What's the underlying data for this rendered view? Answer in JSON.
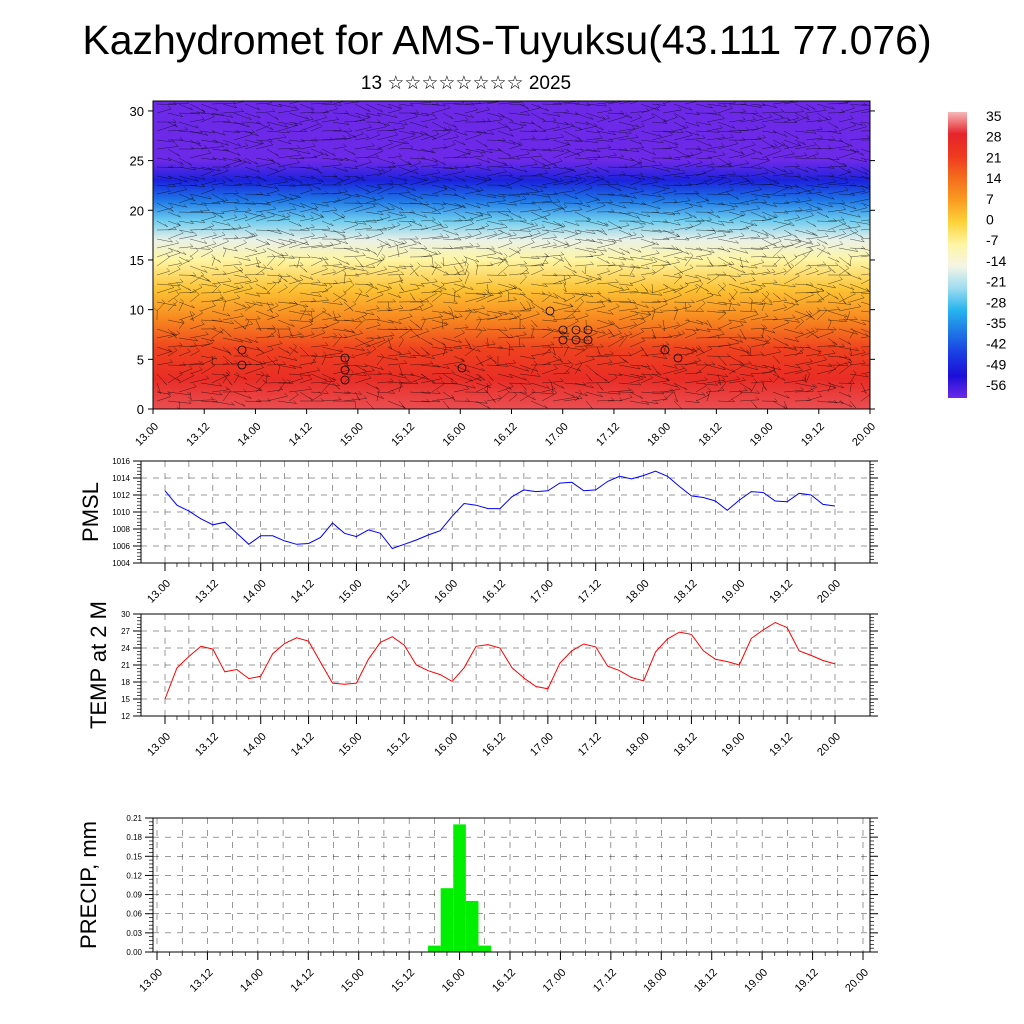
{
  "header": {
    "title": "Kazhydromet for AMS-Tuyuksu(43.111 77.076)",
    "subtitle": "13 ☆☆☆☆☆☆☆☆ 2025"
  },
  "chart_data": [
    {
      "type": "heatmap",
      "title": "",
      "xlabel": "",
      "ylabel": "",
      "x_tick_labels": [
        "13.00",
        "13.12",
        "14.00",
        "14.12",
        "15.00",
        "15.12",
        "16.00",
        "16.12",
        "17.00",
        "17.12",
        "18.00",
        "18.12",
        "19.00",
        "19.12",
        "20.00"
      ],
      "y_ticks": [
        0,
        5,
        10,
        15,
        20,
        25,
        30
      ],
      "ylim": [
        0,
        31
      ],
      "variable": "temperature shading with wind vectors",
      "colorbar": {
        "labels": [
          "35",
          "28",
          "21",
          "14",
          "7",
          "0",
          "-7",
          "-14",
          "-21",
          "-28",
          "-35",
          "-42",
          "-49",
          "-56"
        ],
        "values": [
          35,
          28,
          21,
          14,
          7,
          0,
          -7,
          -14,
          -21,
          -28,
          -35,
          -42,
          -49,
          -56
        ],
        "colors": [
          "#f5b8b8",
          "#e5242a",
          "#ee3a20",
          "#f46d1c",
          "#fa9b21",
          "#fdd23a",
          "#fef5a3",
          "#f5f5e6",
          "#9fdcf0",
          "#27b4ee",
          "#1e77e6",
          "#1a3ce3",
          "#1c0fd8",
          "#6c2ae8"
        ]
      },
      "level_temperatures": [
        {
          "level": 0,
          "value": 30
        },
        {
          "level": 3,
          "value": 25
        },
        {
          "level": 6,
          "value": 20
        },
        {
          "level": 9,
          "value": 10
        },
        {
          "level": 12,
          "value": 2
        },
        {
          "level": 15,
          "value": -7
        },
        {
          "level": 17,
          "value": -15
        },
        {
          "level": 19,
          "value": -24
        },
        {
          "level": 21,
          "value": -35
        },
        {
          "level": 23,
          "value": -46
        },
        {
          "level": 25,
          "value": -56
        },
        {
          "level": 27,
          "value": -58
        },
        {
          "level": 31,
          "value": -60
        }
      ]
    },
    {
      "type": "line",
      "ylabel": "PMSL",
      "ylim": [
        1004,
        1016
      ],
      "y_ticks": [
        "1004",
        "1006",
        "1008",
        "1010",
        "1012",
        "1014",
        "1016"
      ],
      "x_tick_labels": [
        "13.00",
        "13.12",
        "14.00",
        "14.12",
        "15.00",
        "15.12",
        "16.00",
        "16.12",
        "17.00",
        "17.12",
        "18.00",
        "18.12",
        "19.00",
        "19.12",
        "20.00"
      ],
      "x": [
        0,
        3,
        6,
        9,
        12,
        15,
        18,
        21,
        24,
        27,
        30,
        33,
        36,
        39,
        42,
        45,
        48,
        51,
        54,
        57,
        60,
        63,
        66,
        69,
        72,
        75,
        78,
        81,
        84,
        87,
        90,
        93,
        96,
        99,
        102,
        105,
        108,
        111,
        114,
        117,
        120,
        123,
        126,
        129,
        132,
        135,
        138,
        141,
        144,
        147,
        150,
        153,
        156,
        159,
        162,
        165,
        168
      ],
      "series": [
        {
          "values": [
            1012.5,
            1010.8,
            1010.1,
            1009.2,
            1008.5,
            1008.8,
            1007.5,
            1006.2,
            1007.2,
            1007.2,
            1006.6,
            1006.2,
            1006.3,
            1007.0,
            1008.7,
            1007.5,
            1007.1,
            1007.9,
            1007.5,
            1005.7,
            1006.2,
            1006.7,
            1007.3,
            1007.8,
            1009.5,
            1011.0,
            1010.8,
            1010.4,
            1010.4,
            1011.8,
            1012.6,
            1012.4,
            1012.5,
            1013.4,
            1013.5,
            1012.5,
            1012.6,
            1013.6,
            1014.2,
            1013.9,
            1014.3,
            1014.8,
            1014.2,
            1013.0,
            1011.9,
            1011.7,
            1011.3,
            1010.2,
            1011.4,
            1012.4,
            1012.3,
            1011.3,
            1011.2,
            1012.2,
            1012.0,
            1010.9,
            1010.7
          ],
          "color": "#0000ff"
        }
      ]
    },
    {
      "type": "line",
      "ylabel": "TEMP at 2 M",
      "ylim": [
        12,
        30
      ],
      "y_ticks": [
        "12",
        "15",
        "18",
        "21",
        "24",
        "27",
        "30"
      ],
      "x_tick_labels": [
        "13.00",
        "13.12",
        "14.00",
        "14.12",
        "15.00",
        "15.12",
        "16.00",
        "16.12",
        "17.00",
        "17.12",
        "18.00",
        "18.12",
        "19.00",
        "19.12",
        "20.00"
      ],
      "x": [
        0,
        3,
        6,
        9,
        12,
        15,
        18,
        21,
        24,
        27,
        30,
        33,
        36,
        39,
        42,
        45,
        48,
        51,
        54,
        57,
        60,
        63,
        66,
        69,
        72,
        75,
        78,
        81,
        84,
        87,
        90,
        93,
        96,
        99,
        102,
        105,
        108,
        111,
        114,
        117,
        120,
        123,
        126,
        129,
        132,
        135,
        138,
        141,
        144,
        147,
        150,
        153,
        156,
        159,
        162,
        165,
        168
      ],
      "series": [
        {
          "values": [
            15.0,
            20.5,
            22.5,
            24.3,
            23.8,
            19.8,
            20.2,
            18.6,
            19.0,
            23.0,
            24.8,
            25.8,
            25.2,
            21.5,
            17.8,
            17.6,
            17.8,
            22.0,
            25.0,
            26.0,
            24.5,
            21.0,
            20.0,
            19.3,
            18.1,
            20.5,
            24.3,
            24.6,
            24.0,
            20.5,
            18.7,
            17.2,
            16.8,
            21.3,
            23.5,
            24.7,
            24.2,
            20.8,
            20.0,
            18.8,
            18.2,
            23.3,
            25.6,
            26.8,
            26.4,
            23.5,
            22.0,
            21.6,
            21.0,
            25.7,
            27.2,
            28.5,
            27.6,
            23.5,
            22.7,
            21.8,
            21.2
          ],
          "color": "#ff0000"
        }
      ]
    },
    {
      "type": "bar",
      "ylabel": "PRECIP, mm",
      "ylim": [
        0,
        0.21
      ],
      "y_ticks": [
        "0.00",
        "0.03",
        "0.06",
        "0.09",
        "0.12",
        "0.15",
        "0.18",
        "0.21"
      ],
      "x_tick_labels": [
        "13.00",
        "13.12",
        "14.00",
        "14.12",
        "15.00",
        "15.12",
        "16.00",
        "16.12",
        "17.00",
        "17.12",
        "18.00",
        "18.12",
        "19.00",
        "19.12",
        "20.00"
      ],
      "x": [
        66,
        69,
        72,
        75,
        78,
        81
      ],
      "values": [
        0.01,
        0.1,
        0.2,
        0.08,
        0.01,
        0.0
      ],
      "color": "#00ee00"
    }
  ]
}
